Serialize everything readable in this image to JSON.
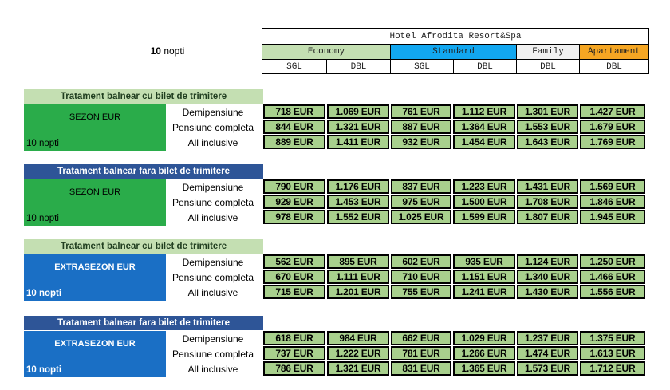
{
  "header": {
    "hotel": "Hotel Afrodita Resort&Spa",
    "nights_label": {
      "number": "10",
      "text": "nopti"
    },
    "categories": [
      {
        "name": "Economy",
        "color": "#c4dfb2",
        "span": 2
      },
      {
        "name": "Standard",
        "color": "#12a7f0",
        "span": 2
      },
      {
        "name": "Family",
        "color": "#f0f0f0",
        "span": 1
      },
      {
        "name": "Apartament",
        "color": "#f5a623",
        "span": 1
      }
    ],
    "rooms": [
      "SGL",
      "DBL",
      "SGL",
      "DBL",
      "DBL",
      "DBL"
    ]
  },
  "sections": [
    {
      "title": "Tratament balnear cu bilet de trimitere",
      "title_style": "light",
      "season": "SEZON EUR",
      "season_style": "green",
      "nights": "10 nopti",
      "meals": [
        "Demipensiune",
        "Pensiune completa",
        "All inclusive"
      ],
      "prices": [
        [
          "718 EUR",
          "1.069 EUR",
          "761 EUR",
          "1.112 EUR",
          "1.301 EUR",
          "1.427 EUR"
        ],
        [
          "844 EUR",
          "1.321 EUR",
          "887 EUR",
          "1.364 EUR",
          "1.553 EUR",
          "1.679 EUR"
        ],
        [
          "889 EUR",
          "1.411 EUR",
          "932 EUR",
          "1.454 EUR",
          "1.643 EUR",
          "1.769 EUR"
        ]
      ]
    },
    {
      "title": "Tratament balnear fara bilet de trimitere",
      "title_style": "dark",
      "season": "SEZON EUR",
      "season_style": "green",
      "nights": "10 nopti",
      "meals": [
        "Demipensiune",
        "Pensiune completa",
        "All inclusive"
      ],
      "prices": [
        [
          "790 EUR",
          "1.176 EUR",
          "837 EUR",
          "1.223 EUR",
          "1.431 EUR",
          "1.569 EUR"
        ],
        [
          "929 EUR",
          "1.453 EUR",
          "975 EUR",
          "1.500 EUR",
          "1.708 EUR",
          "1.846 EUR"
        ],
        [
          "978 EUR",
          "1.552 EUR",
          "1.025 EUR",
          "1.599 EUR",
          "1.807 EUR",
          "1.945 EUR"
        ]
      ]
    },
    {
      "title": "Tratament balnear cu bilet de trimitere",
      "title_style": "light",
      "season": "EXTRASEZON EUR",
      "season_style": "blue",
      "nights": "10 nopti",
      "meals": [
        "Demipensiune",
        "Pensiune completa",
        "All inclusive"
      ],
      "prices": [
        [
          "562 EUR",
          "895 EUR",
          "602 EUR",
          "935 EUR",
          "1.124 EUR",
          "1.250 EUR"
        ],
        [
          "670 EUR",
          "1.111 EUR",
          "710 EUR",
          "1.151 EUR",
          "1.340 EUR",
          "1.466 EUR"
        ],
        [
          "715 EUR",
          "1.201 EUR",
          "755 EUR",
          "1.241 EUR",
          "1.430 EUR",
          "1.556 EUR"
        ]
      ]
    },
    {
      "title": "Tratament balnear fara bilet de trimitere",
      "title_style": "dark",
      "season": "EXTRASEZON EUR",
      "season_style": "blue",
      "nights": "10 nopti",
      "meals": [
        "Demipensiune",
        "Pensiune completa",
        "All inclusive"
      ],
      "prices": [
        [
          "618 EUR",
          "984 EUR",
          "662 EUR",
          "1.029 EUR",
          "1.237 EUR",
          "1.375 EUR"
        ],
        [
          "737 EUR",
          "1.222 EUR",
          "781 EUR",
          "1.266 EUR",
          "1.474 EUR",
          "1.613 EUR"
        ],
        [
          "786 EUR",
          "1.321 EUR",
          "831 EUR",
          "1.365 EUR",
          "1.573 EUR",
          "1.712 EUR"
        ]
      ]
    }
  ]
}
